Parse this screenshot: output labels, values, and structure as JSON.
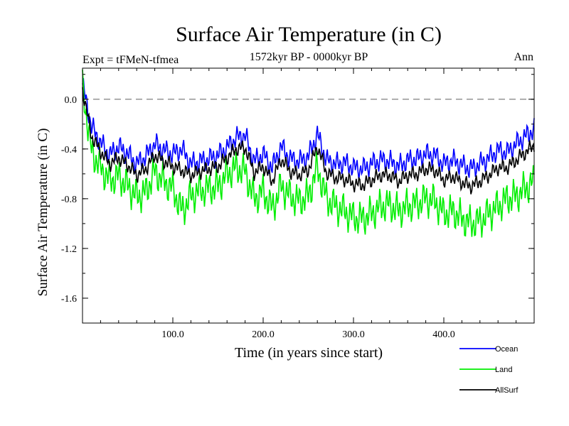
{
  "chart_data": {
    "type": "line",
    "title": "Surface Air Temperature (in C)",
    "subtitle_left": "Expt = tFMeN-tfmea",
    "subtitle_center": "1572kyr BP - 0000kyr BP",
    "subtitle_right": "Ann",
    "xlabel": "Time (in years since start)",
    "ylabel": "Surface Air Temperature (in C)",
    "xlim": [
      0,
      500
    ],
    "ylim": [
      -1.8,
      0.25
    ],
    "x_ticks": [
      100,
      200,
      300,
      400
    ],
    "x_tick_labels": [
      "100.0",
      "200.0",
      "300.0",
      "400.0"
    ],
    "y_ticks": [
      0.0,
      -0.4,
      -0.8,
      -1.2,
      -1.6
    ],
    "y_tick_labels": [
      "0.0",
      "-0.4",
      "-0.8",
      "-1.2",
      "-1.6"
    ],
    "reference_line": {
      "y": 0.0,
      "style": "dashed"
    },
    "x_step": 10,
    "series": [
      {
        "name": "Ocean",
        "color": "#0000ff",
        "values": [
          0.12,
          -0.22,
          -0.35,
          -0.45,
          -0.38,
          -0.44,
          -0.52,
          -0.46,
          -0.36,
          -0.41,
          -0.44,
          -0.4,
          -0.52,
          -0.5,
          -0.48,
          -0.45,
          -0.39,
          -0.31,
          -0.29,
          -0.5,
          -0.44,
          -0.55,
          -0.38,
          -0.48,
          -0.5,
          -0.46,
          -0.28,
          -0.49,
          -0.52,
          -0.51,
          -0.55,
          -0.56,
          -0.52,
          -0.49,
          -0.5,
          -0.54,
          -0.49,
          -0.48,
          -0.44,
          -0.45,
          -0.52,
          -0.49,
          -0.53,
          -0.56,
          -0.52,
          -0.47,
          -0.41,
          -0.43,
          -0.36,
          -0.3
        ]
      },
      {
        "name": "Land",
        "color": "#00ee00",
        "values": [
          0.1,
          -0.42,
          -0.55,
          -0.65,
          -0.62,
          -0.7,
          -0.78,
          -0.75,
          -0.58,
          -0.66,
          -0.72,
          -0.9,
          -0.78,
          -0.73,
          -0.72,
          -0.7,
          -0.6,
          -0.55,
          -0.58,
          -0.8,
          -0.74,
          -0.88,
          -0.7,
          -0.78,
          -0.82,
          -0.78,
          -0.55,
          -0.8,
          -0.86,
          -0.9,
          -0.95,
          -0.96,
          -0.92,
          -0.86,
          -0.85,
          -0.9,
          -0.86,
          -0.84,
          -0.8,
          -0.82,
          -0.92,
          -0.9,
          -0.96,
          -1.0,
          -0.98,
          -0.92,
          -0.86,
          -0.8,
          -0.78,
          -0.72
        ]
      },
      {
        "name": "AllSurf",
        "color": "#000000",
        "values": [
          0.08,
          -0.3,
          -0.42,
          -0.52,
          -0.47,
          -0.53,
          -0.61,
          -0.56,
          -0.45,
          -0.5,
          -0.54,
          -0.57,
          -0.61,
          -0.58,
          -0.56,
          -0.54,
          -0.47,
          -0.4,
          -0.39,
          -0.59,
          -0.54,
          -0.66,
          -0.48,
          -0.58,
          -0.61,
          -0.57,
          -0.38,
          -0.59,
          -0.63,
          -0.64,
          -0.68,
          -0.69,
          -0.65,
          -0.61,
          -0.61,
          -0.66,
          -0.61,
          -0.6,
          -0.56,
          -0.57,
          -0.65,
          -0.62,
          -0.67,
          -0.7,
          -0.66,
          -0.61,
          -0.55,
          -0.55,
          -0.49,
          -0.43
        ]
      }
    ],
    "legend_placement": "bottom-right"
  }
}
